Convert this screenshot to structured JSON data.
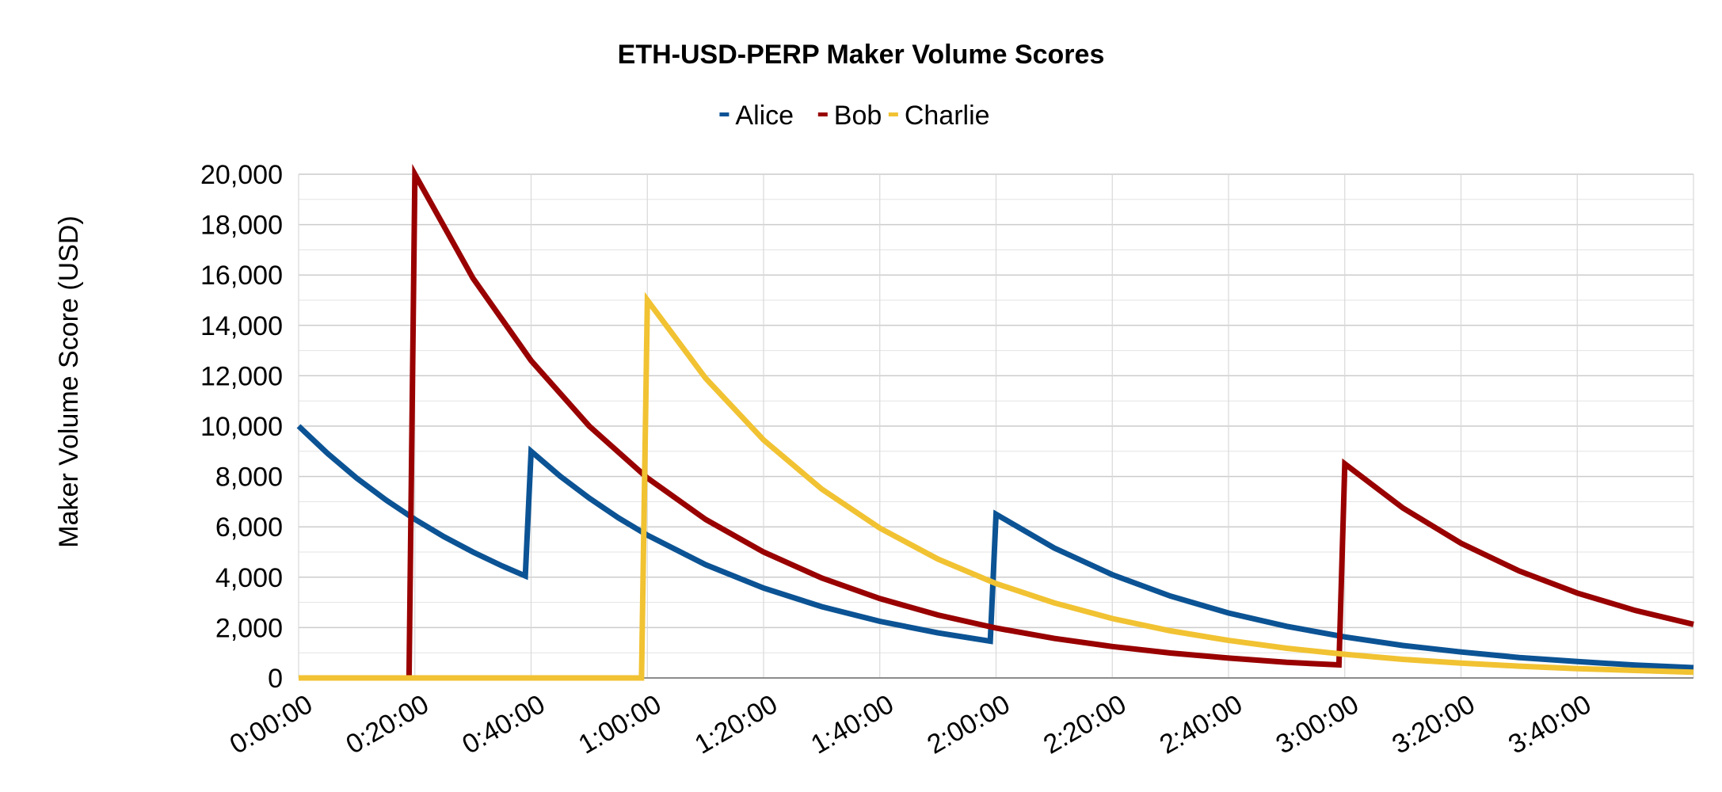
{
  "chart_data": {
    "type": "line",
    "title": "ETH-USD-PERP Maker Volume Scores",
    "xlabel": "",
    "ylabel": "Maker Volume Score (USD)",
    "x_ticks": [
      "0:00:00",
      "0:20:00",
      "0:40:00",
      "1:00:00",
      "1:20:00",
      "1:40:00",
      "2:00:00",
      "2:20:00",
      "2:40:00",
      "3:00:00",
      "3:20:00",
      "3:40:00"
    ],
    "y_ticks": [
      "0",
      "2,000",
      "4,000",
      "6,000",
      "8,000",
      "10,000",
      "12,000",
      "14,000",
      "16,000",
      "18,000",
      "20,000"
    ],
    "xlim_minutes": [
      0,
      240
    ],
    "ylim": [
      0,
      20000
    ],
    "grid": true,
    "legend": "top-center",
    "series": [
      {
        "name": "Alice",
        "color": "#0b5394",
        "points": [
          [
            0,
            10000
          ],
          [
            5,
            8910
          ],
          [
            10,
            7930
          ],
          [
            15,
            7070
          ],
          [
            20,
            6300
          ],
          [
            25,
            5610
          ],
          [
            30,
            5000
          ],
          [
            35,
            4450
          ],
          [
            39,
            4050
          ],
          [
            40,
            9000
          ],
          [
            45,
            8010
          ],
          [
            50,
            7140
          ],
          [
            55,
            6360
          ],
          [
            60,
            5670
          ],
          [
            70,
            4500
          ],
          [
            80,
            3570
          ],
          [
            90,
            2830
          ],
          [
            100,
            2250
          ],
          [
            110,
            1790
          ],
          [
            119,
            1460
          ],
          [
            120,
            6500
          ],
          [
            130,
            5160
          ],
          [
            140,
            4100
          ],
          [
            150,
            3250
          ],
          [
            160,
            2580
          ],
          [
            170,
            2050
          ],
          [
            180,
            1630
          ],
          [
            190,
            1290
          ],
          [
            200,
            1030
          ],
          [
            210,
            810
          ],
          [
            220,
            650
          ],
          [
            230,
            510
          ],
          [
            240,
            410
          ]
        ]
      },
      {
        "name": "Bob",
        "color": "#990000",
        "points": [
          [
            0,
            0
          ],
          [
            19,
            0
          ],
          [
            20,
            20000
          ],
          [
            30,
            15870
          ],
          [
            40,
            12600
          ],
          [
            50,
            10000
          ],
          [
            60,
            7940
          ],
          [
            70,
            6300
          ],
          [
            80,
            5000
          ],
          [
            90,
            3970
          ],
          [
            100,
            3150
          ],
          [
            110,
            2500
          ],
          [
            120,
            1980
          ],
          [
            130,
            1570
          ],
          [
            140,
            1250
          ],
          [
            150,
            990
          ],
          [
            160,
            790
          ],
          [
            170,
            620
          ],
          [
            179,
            520
          ],
          [
            180,
            8500
          ],
          [
            190,
            6750
          ],
          [
            200,
            5350
          ],
          [
            210,
            4250
          ],
          [
            220,
            3370
          ],
          [
            230,
            2680
          ],
          [
            240,
            2130
          ]
        ]
      },
      {
        "name": "Charlie",
        "color": "#f1c232",
        "points": [
          [
            0,
            0
          ],
          [
            59,
            0
          ],
          [
            60,
            15000
          ],
          [
            70,
            11910
          ],
          [
            80,
            9450
          ],
          [
            90,
            7500
          ],
          [
            100,
            5950
          ],
          [
            110,
            4720
          ],
          [
            120,
            3750
          ],
          [
            130,
            2980
          ],
          [
            140,
            2360
          ],
          [
            150,
            1870
          ],
          [
            160,
            1490
          ],
          [
            170,
            1180
          ],
          [
            180,
            940
          ],
          [
            190,
            740
          ],
          [
            200,
            590
          ],
          [
            210,
            470
          ],
          [
            220,
            370
          ],
          [
            230,
            300
          ],
          [
            240,
            230
          ]
        ]
      }
    ]
  }
}
